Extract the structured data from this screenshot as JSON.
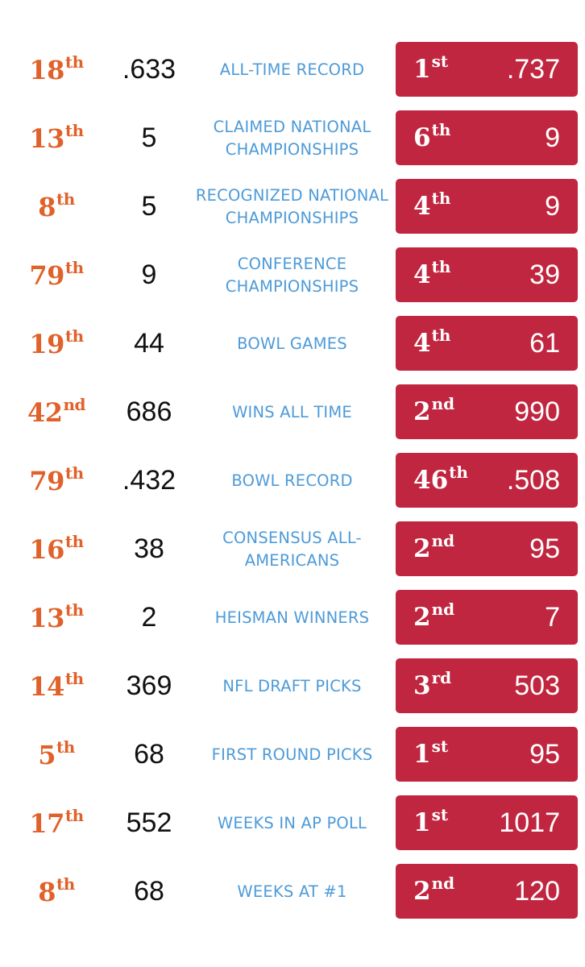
{
  "colors": {
    "orange": "#e0622a",
    "blue": "#4e9bd8",
    "red_box": "#c0263f"
  },
  "rows": [
    {
      "left_rank_num": "18",
      "left_rank_sfx": "th",
      "left_value": ".633",
      "category": "ALL-TIME RECORD",
      "right_rank_num": "1",
      "right_rank_sfx": "st",
      "right_value": ".737"
    },
    {
      "left_rank_num": "13",
      "left_rank_sfx": "th",
      "left_value": "5",
      "category": "CLAIMED NATIONAL CHAMPIONSHIPS",
      "right_rank_num": "6",
      "right_rank_sfx": "th",
      "right_value": "9"
    },
    {
      "left_rank_num": "8",
      "left_rank_sfx": "th",
      "left_value": "5",
      "category": "RECOGNIZED NATIONAL CHAMPIONSHIPS",
      "right_rank_num": "4",
      "right_rank_sfx": "th",
      "right_value": "9"
    },
    {
      "left_rank_num": "79",
      "left_rank_sfx": "th",
      "left_value": "9",
      "category": "CONFERENCE CHAMPIONSHIPS",
      "right_rank_num": "4",
      "right_rank_sfx": "th",
      "right_value": "39"
    },
    {
      "left_rank_num": "19",
      "left_rank_sfx": "th",
      "left_value": "44",
      "category": "BOWL GAMES",
      "right_rank_num": "4",
      "right_rank_sfx": "th",
      "right_value": "61"
    },
    {
      "left_rank_num": "42",
      "left_rank_sfx": "nd",
      "left_value": "686",
      "category": "WINS ALL TIME",
      "right_rank_num": "2",
      "right_rank_sfx": "nd",
      "right_value": "990"
    },
    {
      "left_rank_num": "79",
      "left_rank_sfx": "th",
      "left_value": ".432",
      "category": "BOWL RECORD",
      "right_rank_num": "46",
      "right_rank_sfx": "th",
      "right_value": ".508"
    },
    {
      "left_rank_num": "16",
      "left_rank_sfx": "th",
      "left_value": "38",
      "category": "CONSENSUS ALL-AMERICANS",
      "right_rank_num": "2",
      "right_rank_sfx": "nd",
      "right_value": "95"
    },
    {
      "left_rank_num": "13",
      "left_rank_sfx": "th",
      "left_value": "2",
      "category": "HEISMAN WINNERS",
      "right_rank_num": "2",
      "right_rank_sfx": "nd",
      "right_value": "7"
    },
    {
      "left_rank_num": "14",
      "left_rank_sfx": "th",
      "left_value": "369",
      "category": "NFL DRAFT PICKS",
      "right_rank_num": "3",
      "right_rank_sfx": "rd",
      "right_value": "503"
    },
    {
      "left_rank_num": "5",
      "left_rank_sfx": "th",
      "left_value": "68",
      "category": "FIRST ROUND PICKS",
      "right_rank_num": "1",
      "right_rank_sfx": "st",
      "right_value": "95"
    },
    {
      "left_rank_num": "17",
      "left_rank_sfx": "th",
      "left_value": "552",
      "category": "WEEKS IN AP POLL",
      "right_rank_num": "1",
      "right_rank_sfx": "st",
      "right_value": "1017"
    },
    {
      "left_rank_num": "8",
      "left_rank_sfx": "th",
      "left_value": "68",
      "category": "WEEKS AT #1",
      "right_rank_num": "2",
      "right_rank_sfx": "nd",
      "right_value": "120"
    }
  ]
}
